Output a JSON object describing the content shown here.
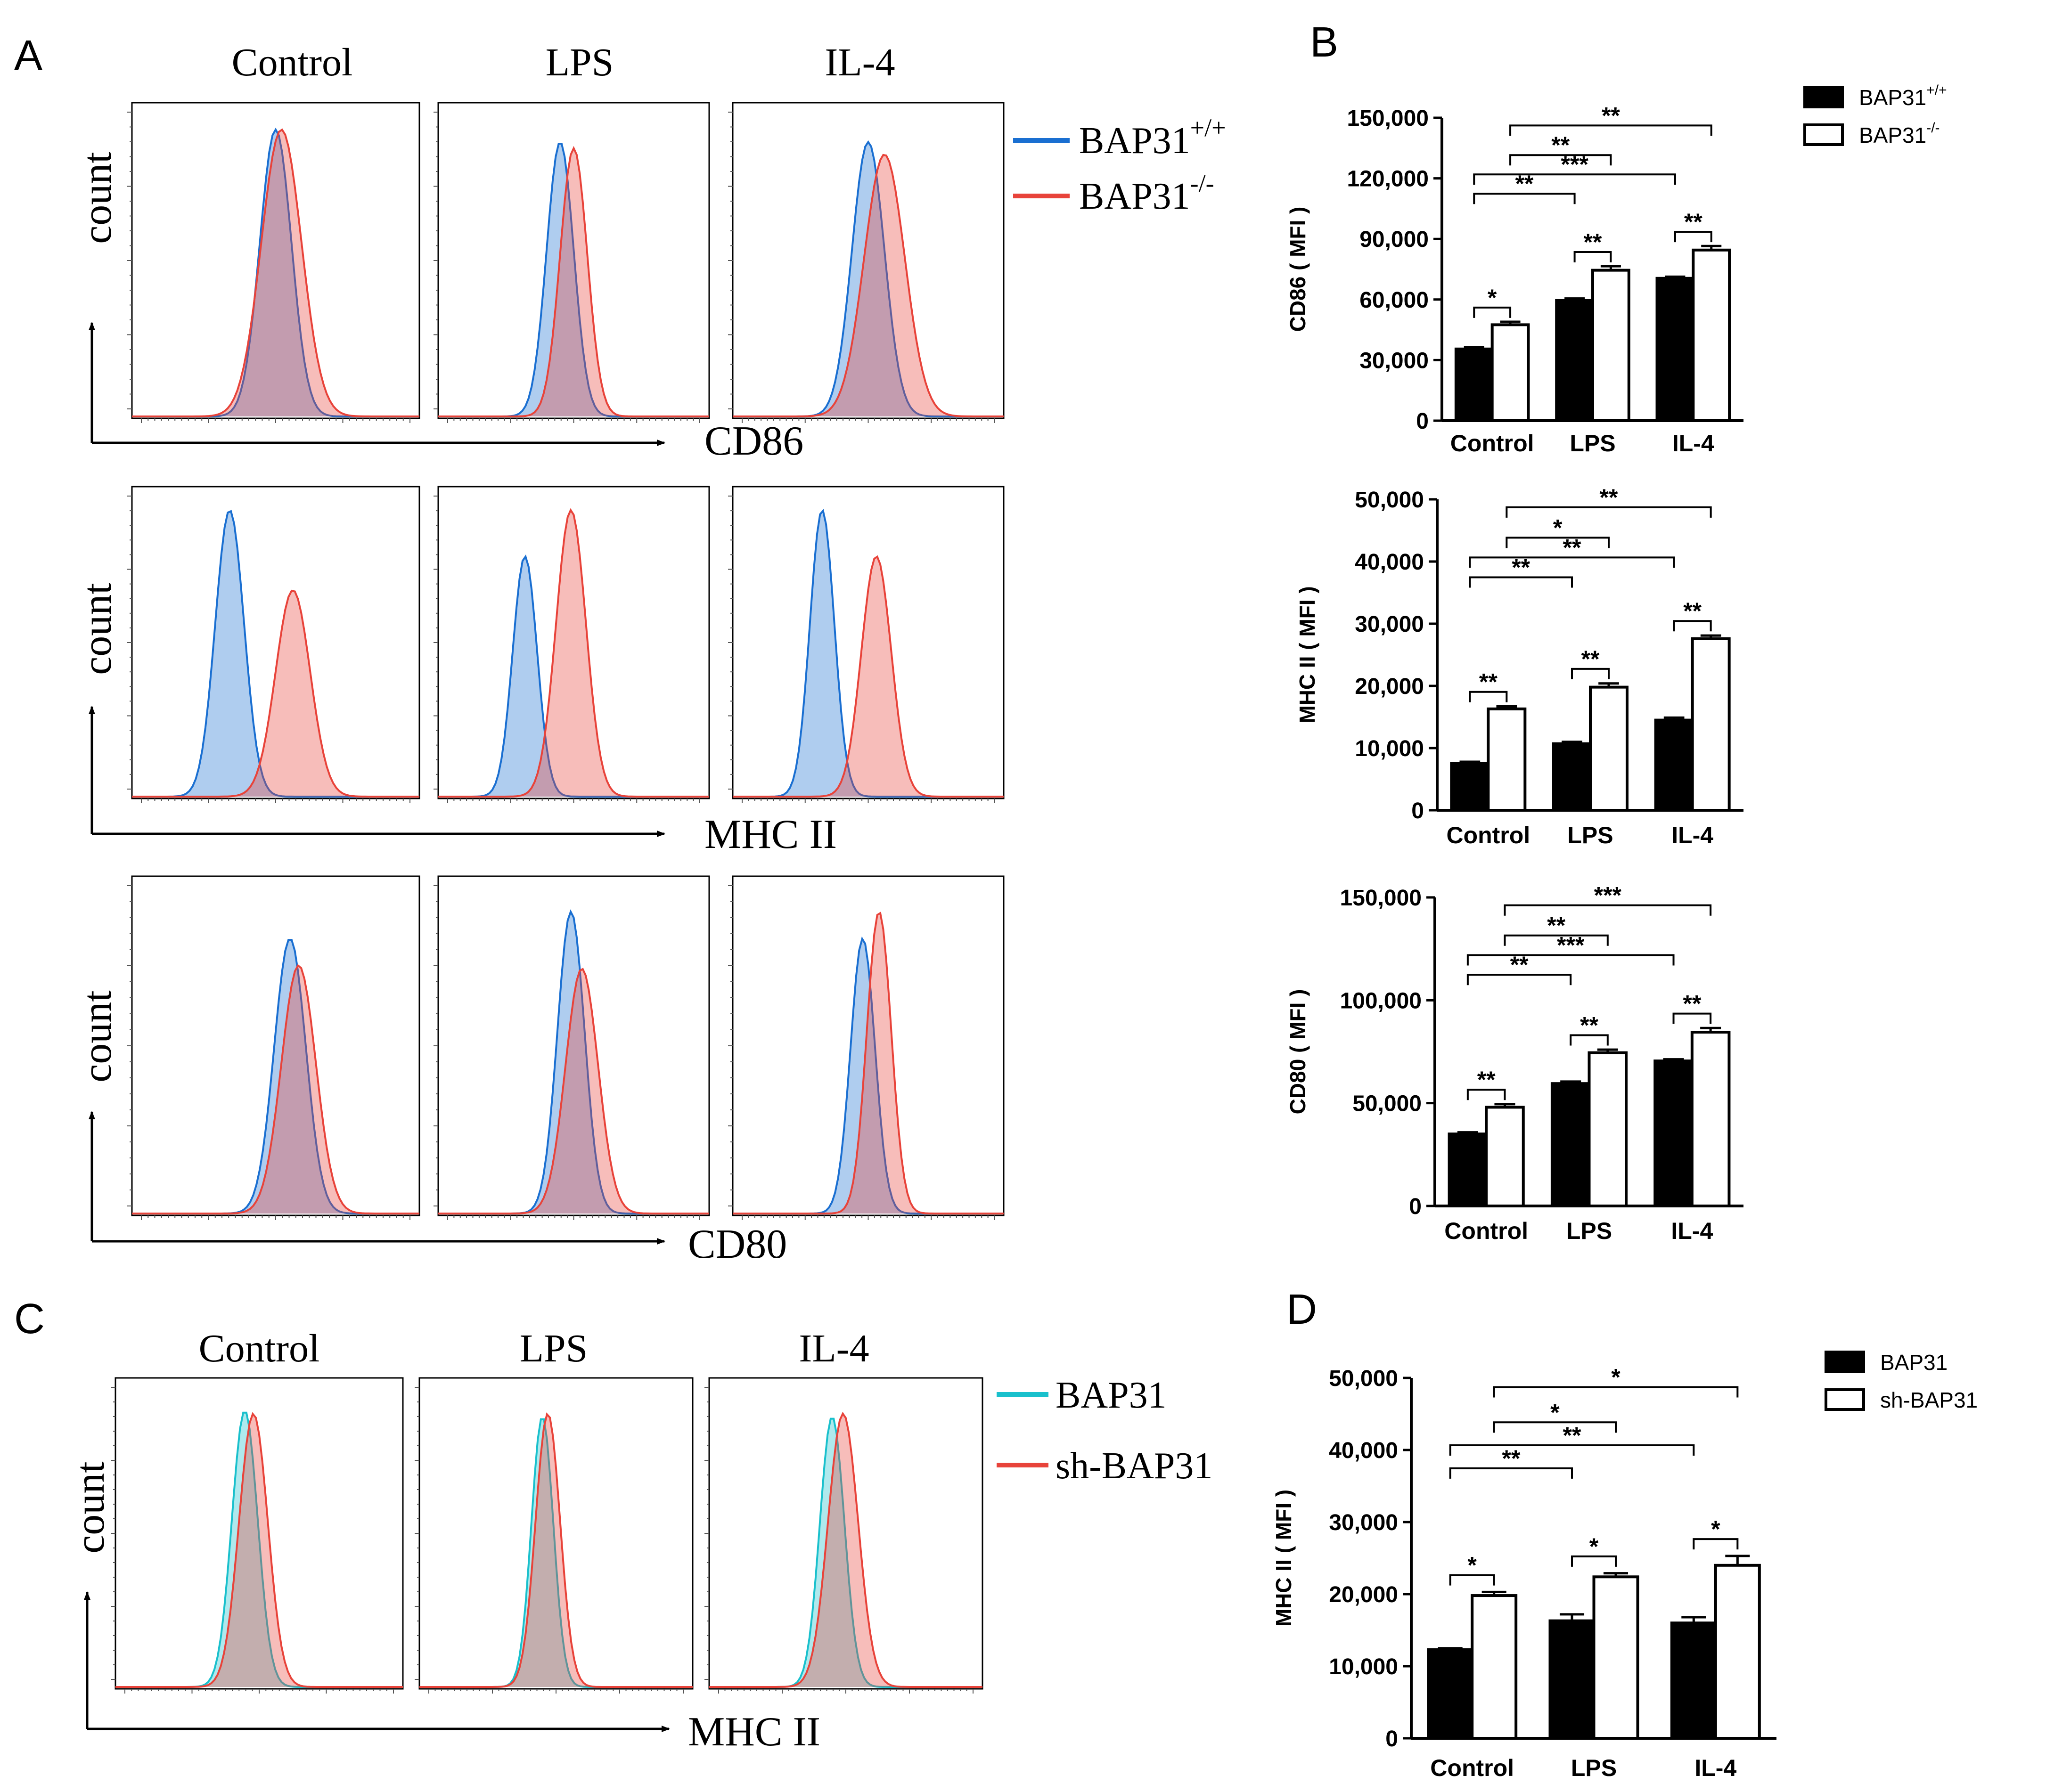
{
  "figure": {
    "panel_labels": {
      "A": "A",
      "B": "B",
      "C": "C",
      "D": "D"
    }
  },
  "panelA": {
    "columns": [
      "Control",
      "LPS",
      "IL-4"
    ],
    "count_label": "count",
    "legend": {
      "wt": {
        "base": "BAP31",
        "sup": "+/+",
        "color": "#1a6fd1"
      },
      "ko": {
        "base": "BAP31",
        "sup": "-/-",
        "color": "#e8433a"
      }
    },
    "rows": [
      {
        "marker": "CD86",
        "peaks": [
          {
            "wt": {
              "mu": 0.5,
              "sd": 0.055,
              "h": 0.92
            },
            "ko": {
              "mu": 0.52,
              "sd": 0.07,
              "h": 0.92
            }
          },
          {
            "wt": {
              "mu": 0.45,
              "sd": 0.05,
              "h": 0.88
            },
            "ko": {
              "mu": 0.5,
              "sd": 0.05,
              "h": 0.86
            }
          },
          {
            "wt": {
              "mu": 0.5,
              "sd": 0.06,
              "h": 0.88
            },
            "ko": {
              "mu": 0.56,
              "sd": 0.075,
              "h": 0.84
            }
          }
        ]
      },
      {
        "marker": "MHC II",
        "peaks": [
          {
            "wt": {
              "mu": 0.34,
              "sd": 0.05,
              "h": 0.93
            },
            "ko": {
              "mu": 0.56,
              "sd": 0.06,
              "h": 0.67
            }
          },
          {
            "wt": {
              "mu": 0.32,
              "sd": 0.045,
              "h": 0.78
            },
            "ko": {
              "mu": 0.49,
              "sd": 0.055,
              "h": 0.93
            }
          },
          {
            "wt": {
              "mu": 0.33,
              "sd": 0.045,
              "h": 0.93
            },
            "ko": {
              "mu": 0.53,
              "sd": 0.055,
              "h": 0.78
            }
          }
        ]
      },
      {
        "marker": "CD80",
        "peaks": [
          {
            "wt": {
              "mu": 0.55,
              "sd": 0.055,
              "h": 0.82
            },
            "ko": {
              "mu": 0.58,
              "sd": 0.06,
              "h": 0.74
            }
          },
          {
            "wt": {
              "mu": 0.49,
              "sd": 0.05,
              "h": 0.9
            },
            "ko": {
              "mu": 0.53,
              "sd": 0.06,
              "h": 0.73
            }
          },
          {
            "wt": {
              "mu": 0.48,
              "sd": 0.045,
              "h": 0.82
            },
            "ko": {
              "mu": 0.54,
              "sd": 0.045,
              "h": 0.9
            }
          }
        ]
      }
    ]
  },
  "panelC": {
    "columns": [
      "Control",
      "LPS",
      "IL-4"
    ],
    "count_label": "count",
    "marker": "MHC II",
    "legend": {
      "ctrl": {
        "label": "BAP31",
        "color": "#19c0cc"
      },
      "sh": {
        "label": "sh-BAP31",
        "color": "#e8433a"
      }
    },
    "peaks": [
      {
        "ctrl": {
          "mu": 0.45,
          "sd": 0.045,
          "h": 0.9
        },
        "sh": {
          "mu": 0.48,
          "sd": 0.05,
          "h": 0.89
        }
      },
      {
        "ctrl": {
          "mu": 0.45,
          "sd": 0.04,
          "h": 0.88
        },
        "sh": {
          "mu": 0.47,
          "sd": 0.045,
          "h": 0.89
        }
      },
      {
        "ctrl": {
          "mu": 0.45,
          "sd": 0.045,
          "h": 0.88
        },
        "sh": {
          "mu": 0.49,
          "sd": 0.055,
          "h": 0.89
        }
      }
    ]
  },
  "chart_data": [
    {
      "type": "bar",
      "title": "",
      "ylabel": "CD86 ( MFI )",
      "xlabel": "",
      "categories": [
        "Control",
        "LPS",
        "IL-4"
      ],
      "ylim": [
        0,
        150000
      ],
      "yticks": [
        0,
        30000,
        60000,
        90000,
        120000,
        150000
      ],
      "ytick_labels": [
        "0",
        "30,000",
        "60,000",
        "90,000",
        "120,000",
        "150,000"
      ],
      "legend_entries": [
        {
          "base": "BAP31",
          "sup": "+/+"
        },
        {
          "base": "BAP31",
          "sup": "-/-"
        }
      ],
      "series": [
        {
          "name": "BAP31+/+",
          "values": [
            35500,
            59500,
            70500
          ],
          "errors": [
            800,
            1000,
            800
          ]
        },
        {
          "name": "BAP31-/-",
          "values": [
            47500,
            74500,
            84500
          ],
          "errors": [
            1500,
            2000,
            2000
          ]
        }
      ],
      "comparisons": [
        {
          "from": [
            0,
            0
          ],
          "to": [
            0,
            1
          ],
          "label": "*"
        },
        {
          "from": [
            1,
            0
          ],
          "to": [
            1,
            1
          ],
          "label": "**"
        },
        {
          "from": [
            2,
            0
          ],
          "to": [
            2,
            1
          ],
          "label": "**"
        },
        {
          "from": [
            0,
            0
          ],
          "to": [
            1,
            0
          ],
          "label": "**"
        },
        {
          "from": [
            0,
            0
          ],
          "to": [
            2,
            0
          ],
          "label": "***"
        },
        {
          "from": [
            0,
            1
          ],
          "to": [
            1,
            1
          ],
          "label": "**"
        },
        {
          "from": [
            0,
            1
          ],
          "to": [
            2,
            1
          ],
          "label": "**"
        }
      ]
    },
    {
      "type": "bar",
      "title": "",
      "ylabel": "MHC II ( MFI )",
      "xlabel": "",
      "categories": [
        "Control",
        "LPS",
        "IL-4"
      ],
      "ylim": [
        0,
        50000
      ],
      "yticks": [
        0,
        10000,
        20000,
        30000,
        40000,
        50000
      ],
      "ytick_labels": [
        "0",
        "10,000",
        "20,000",
        "30,000",
        "40,000",
        "50,000"
      ],
      "legend_entries": [],
      "series": [
        {
          "name": "BAP31+/+",
          "values": [
            7500,
            10700,
            14500
          ],
          "errors": [
            300,
            300,
            400
          ]
        },
        {
          "name": "BAP31-/-",
          "values": [
            16300,
            19800,
            27600
          ],
          "errors": [
            400,
            600,
            500
          ]
        }
      ],
      "comparisons": [
        {
          "from": [
            0,
            0
          ],
          "to": [
            0,
            1
          ],
          "label": "**"
        },
        {
          "from": [
            1,
            0
          ],
          "to": [
            1,
            1
          ],
          "label": "**"
        },
        {
          "from": [
            2,
            0
          ],
          "to": [
            2,
            1
          ],
          "label": "**"
        },
        {
          "from": [
            0,
            0
          ],
          "to": [
            1,
            0
          ],
          "label": "**"
        },
        {
          "from": [
            0,
            0
          ],
          "to": [
            2,
            0
          ],
          "label": "**"
        },
        {
          "from": [
            0,
            1
          ],
          "to": [
            1,
            1
          ],
          "label": "*"
        },
        {
          "from": [
            0,
            1
          ],
          "to": [
            2,
            1
          ],
          "label": "**"
        }
      ]
    },
    {
      "type": "bar",
      "title": "",
      "ylabel": "CD80 ( MFI )",
      "xlabel": "",
      "categories": [
        "Control",
        "LPS",
        "IL-4"
      ],
      "ylim": [
        0,
        150000
      ],
      "yticks": [
        0,
        50000,
        100000,
        150000
      ],
      "ytick_labels": [
        "0",
        "50,000",
        "100,000",
        "150,000"
      ],
      "legend_entries": [],
      "series": [
        {
          "name": "BAP31+/+",
          "values": [
            35000,
            59500,
            70500
          ],
          "errors": [
            800,
            1000,
            800
          ]
        },
        {
          "name": "BAP31-/-",
          "values": [
            48000,
            74500,
            84500
          ],
          "errors": [
            1500,
            1500,
            2000
          ]
        }
      ],
      "comparisons": [
        {
          "from": [
            0,
            0
          ],
          "to": [
            0,
            1
          ],
          "label": "**"
        },
        {
          "from": [
            1,
            0
          ],
          "to": [
            1,
            1
          ],
          "label": "**"
        },
        {
          "from": [
            2,
            0
          ],
          "to": [
            2,
            1
          ],
          "label": "**"
        },
        {
          "from": [
            0,
            0
          ],
          "to": [
            1,
            0
          ],
          "label": "**"
        },
        {
          "from": [
            0,
            0
          ],
          "to": [
            2,
            0
          ],
          "label": "***"
        },
        {
          "from": [
            0,
            1
          ],
          "to": [
            1,
            1
          ],
          "label": "**"
        },
        {
          "from": [
            0,
            1
          ],
          "to": [
            2,
            1
          ],
          "label": "***"
        }
      ]
    },
    {
      "type": "bar",
      "title": "",
      "ylabel": "MHC II ( MFI )",
      "xlabel": "",
      "categories": [
        "Control",
        "LPS",
        "IL-4"
      ],
      "ylim": [
        0,
        50000
      ],
      "yticks": [
        0,
        10000,
        20000,
        30000,
        40000,
        50000
      ],
      "ytick_labels": [
        "0",
        "10,000",
        "20,000",
        "30,000",
        "40,000",
        "50,000"
      ],
      "legend_entries": [
        {
          "base": "BAP31",
          "sup": ""
        },
        {
          "base": "sh-BAP31",
          "sup": ""
        }
      ],
      "series": [
        {
          "name": "BAP31",
          "values": [
            12300,
            16300,
            16000
          ],
          "errors": [
            200,
            900,
            800
          ]
        },
        {
          "name": "sh-BAP31",
          "values": [
            19800,
            22400,
            24000
          ],
          "errors": [
            500,
            500,
            1300
          ]
        }
      ],
      "comparisons": [
        {
          "from": [
            0,
            0
          ],
          "to": [
            0,
            1
          ],
          "label": "*"
        },
        {
          "from": [
            1,
            0
          ],
          "to": [
            1,
            1
          ],
          "label": "*"
        },
        {
          "from": [
            2,
            0
          ],
          "to": [
            2,
            1
          ],
          "label": "*"
        },
        {
          "from": [
            0,
            0
          ],
          "to": [
            1,
            0
          ],
          "label": "**"
        },
        {
          "from": [
            0,
            0
          ],
          "to": [
            2,
            0
          ],
          "label": "**"
        },
        {
          "from": [
            0,
            1
          ],
          "to": [
            1,
            1
          ],
          "label": "*"
        },
        {
          "from": [
            0,
            1
          ],
          "to": [
            2,
            1
          ],
          "label": "*"
        }
      ]
    }
  ]
}
